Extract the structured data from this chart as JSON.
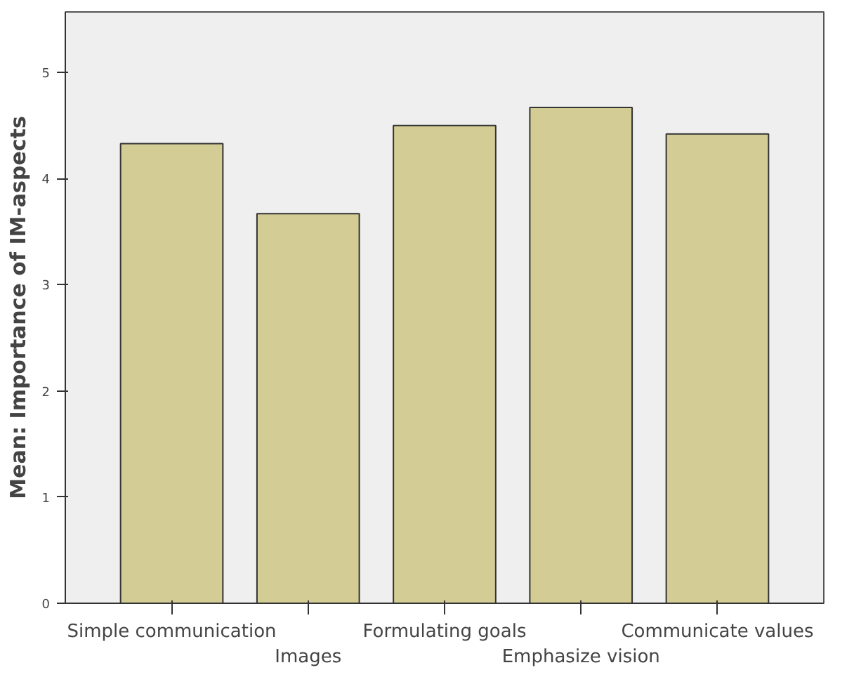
{
  "chart_data": {
    "type": "bar",
    "ylabel": "Mean: Importance of IM-aspects",
    "categories": [
      "Simple communication",
      "Images",
      "Formulating goals",
      "Emphasize vision",
      "Communicate values"
    ],
    "values": [
      4.33,
      3.67,
      4.5,
      4.67,
      4.42
    ],
    "color": "#d3cd95",
    "ylim": [
      0,
      5.57
    ],
    "yticks": [
      0,
      1,
      2,
      3,
      4,
      5
    ],
    "grid": false
  }
}
